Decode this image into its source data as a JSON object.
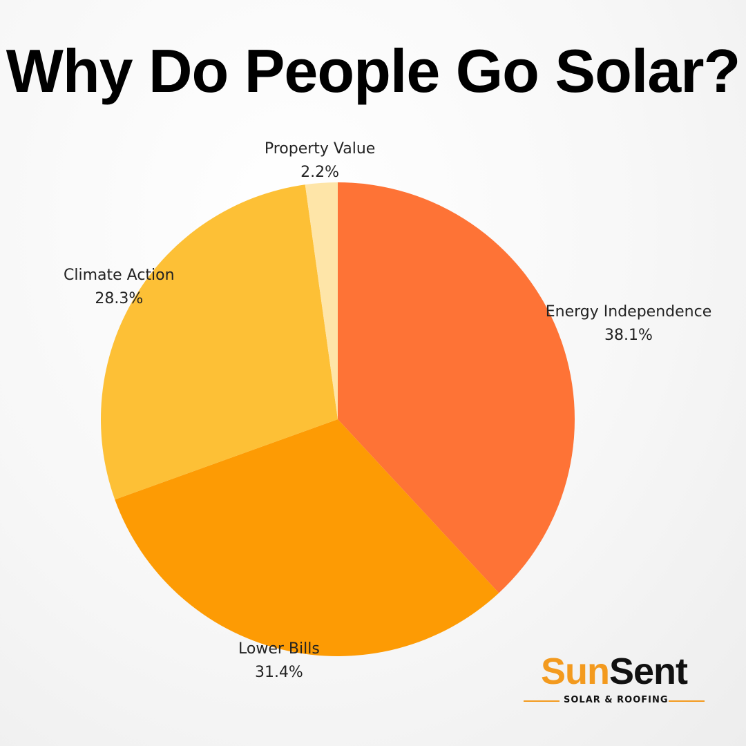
{
  "chart_data": {
    "type": "pie",
    "title": "Why Do People Go Solar?",
    "slices": [
      {
        "label": "Energy Independence",
        "value": 38.1,
        "value_label": "38.1%",
        "color": "#fe7336"
      },
      {
        "label": "Lower Bills",
        "value": 31.4,
        "value_label": "31.4%",
        "color": "#fd9b04"
      },
      {
        "label": "Climate Action",
        "value": 28.3,
        "value_label": "28.3%",
        "color": "#fdc036"
      },
      {
        "label": "Property Value",
        "value": 2.2,
        "value_label": "2.2%",
        "color": "#fee5a8"
      }
    ],
    "start_angle": "12 o'clock",
    "direction": "clockwise"
  },
  "logo": {
    "name_part1": "Sun",
    "name_part2": "Sent",
    "tagline": "SOLAR & ROOFING",
    "accent_color": "#f39a1e"
  }
}
